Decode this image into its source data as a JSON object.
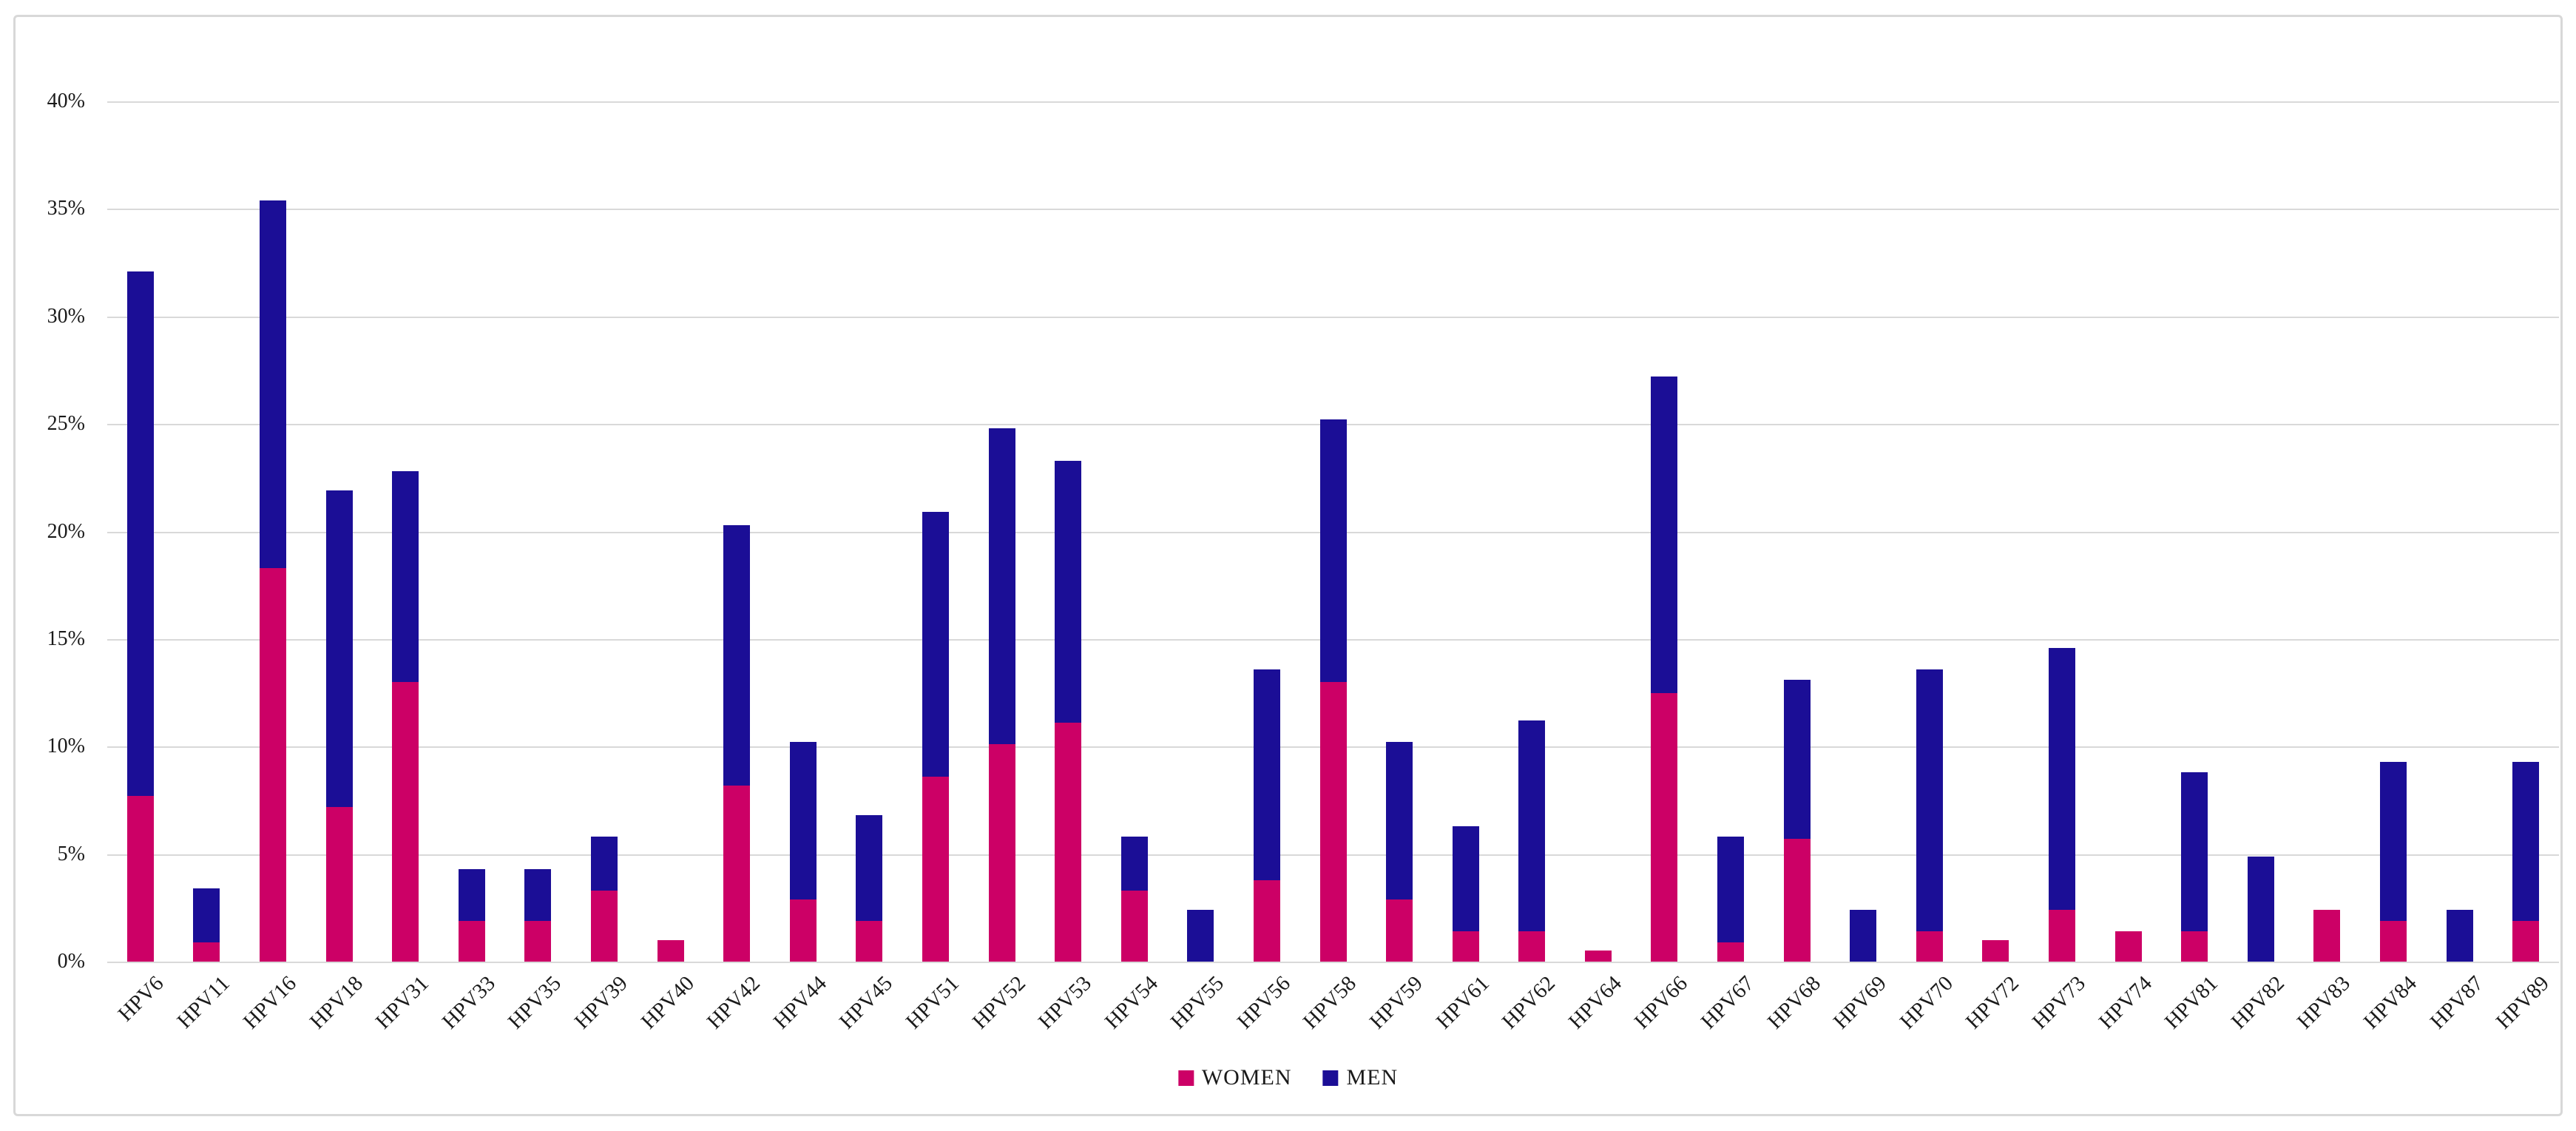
{
  "figure": {
    "background": "#FFFFFF",
    "frame_border_color": "#D8D8D8"
  },
  "chart_data": {
    "type": "bar",
    "stacked": true,
    "title": "",
    "xlabel": "",
    "ylabel": "",
    "categories": [
      "HPV6",
      "HPV11",
      "HPV16",
      "HPV18",
      "HPV31",
      "HPV33",
      "HPV35",
      "HPV39",
      "HPV40",
      "HPV42",
      "HPV44",
      "HPV45",
      "HPV51",
      "HPV52",
      "HPV53",
      "HPV54",
      "HPV55",
      "HPV56",
      "HPV58",
      "HPV59",
      "HPV61",
      "HPV62",
      "HPV64",
      "HPV66",
      "HPV67",
      "HPV68",
      "HPV69",
      "HPV70",
      "HPV72",
      "HPV73",
      "HPV74",
      "HPV81",
      "HPV82",
      "HPV83",
      "HPV84",
      "HPV87",
      "HPV89"
    ],
    "series": [
      {
        "name": "WOMEN",
        "color": "#CC0066",
        "values": [
          7.7,
          0.9,
          18.3,
          7.2,
          13.0,
          1.9,
          1.9,
          3.3,
          1.0,
          8.2,
          2.9,
          1.9,
          8.6,
          10.1,
          11.1,
          3.3,
          0.0,
          3.8,
          13.0,
          2.9,
          1.4,
          1.4,
          0.5,
          12.5,
          0.9,
          5.7,
          0.0,
          1.4,
          1.0,
          2.4,
          1.4,
          1.4,
          0.0,
          2.4,
          1.9,
          0.0,
          1.9
        ]
      },
      {
        "name": "MEN",
        "color": "#1B0E96",
        "values": [
          24.4,
          2.5,
          17.1,
          14.7,
          9.8,
          2.4,
          2.4,
          2.5,
          0.0,
          12.1,
          7.3,
          4.9,
          12.3,
          14.7,
          12.2,
          2.5,
          2.4,
          9.8,
          12.2,
          7.3,
          4.9,
          9.8,
          0.0,
          14.7,
          4.9,
          7.4,
          2.4,
          12.2,
          0.0,
          12.2,
          0.0,
          7.4,
          4.9,
          0.0,
          7.4,
          2.4,
          7.4
        ]
      }
    ],
    "totals": [
      32.1,
      3.4,
      35.4,
      21.9,
      22.8,
      4.3,
      4.3,
      5.8,
      1.0,
      20.3,
      10.2,
      6.8,
      20.9,
      24.8,
      23.3,
      5.8,
      2.4,
      13.6,
      25.2,
      10.2,
      6.3,
      11.2,
      0.5,
      27.2,
      5.8,
      13.1,
      2.4,
      13.6,
      1.0,
      14.6,
      1.4,
      8.8,
      4.9,
      2.4,
      9.3,
      2.4,
      9.3
    ],
    "ylim": [
      0,
      40
    ],
    "ytick_labels": [
      "0%",
      "5%",
      "10%",
      "15%",
      "20%",
      "25%",
      "30%",
      "35%",
      "40%"
    ],
    "ytick_values": [
      0,
      5,
      10,
      15,
      20,
      25,
      30,
      35,
      40
    ],
    "grid": true,
    "gridline_color": "#D9D9D9",
    "legend_position": "bottom-center"
  }
}
